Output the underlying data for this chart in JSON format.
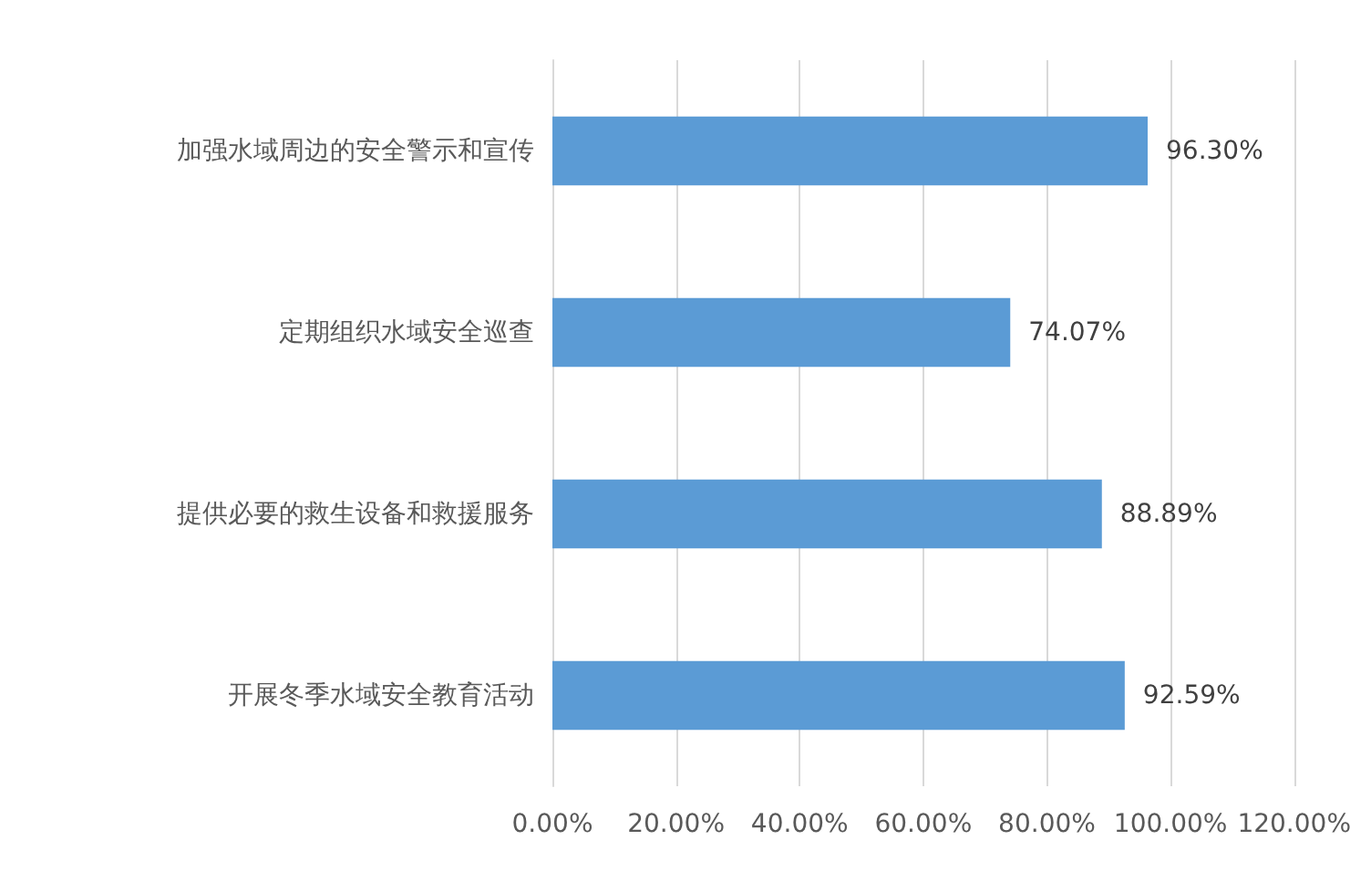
{
  "chart_data": {
    "type": "bar",
    "orientation": "horizontal",
    "categories": [
      "加强水域周边的安全警示和宣传",
      "定期组织水域安全巡查",
      "提供必要的救生设备和救援服务",
      "开展冬季水域安全教育活动"
    ],
    "values": [
      96.3,
      74.07,
      88.89,
      92.59
    ],
    "value_labels": [
      "96.30%",
      "74.07%",
      "88.89%",
      "92.59%"
    ],
    "color": "#5b9bd5",
    "xlim": [
      0,
      120
    ],
    "xticks": [
      {
        "value": 0,
        "label": "0.00%"
      },
      {
        "value": 20,
        "label": "20.00%"
      },
      {
        "value": 40,
        "label": "40.00%"
      },
      {
        "value": 60,
        "label": "60.00%"
      },
      {
        "value": 80,
        "label": "80.00%"
      },
      {
        "value": 100,
        "label": "100.00%"
      },
      {
        "value": 120,
        "label": "120.00%"
      }
    ],
    "grid": "x"
  }
}
